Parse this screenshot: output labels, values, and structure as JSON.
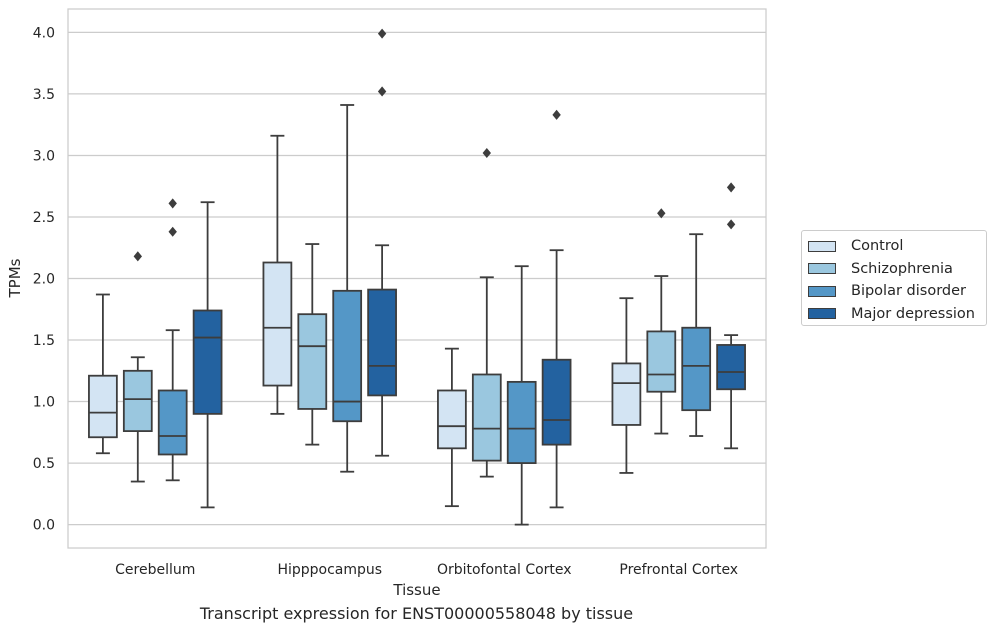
{
  "chart_data": {
    "type": "box",
    "xlabel": "Tissue",
    "ylabel": "TPMs",
    "caption": "Transcript expression for ENST00000558048 by tissue",
    "categories": [
      "Cerebellum",
      "Hipppocampus",
      "Orbitofontal Cortex",
      "Prefrontal Cortex"
    ],
    "ylim": [
      -0.19,
      4.19
    ],
    "yticks": [
      "0.0",
      "0.5",
      "1.0",
      "1.5",
      "2.0",
      "2.5",
      "3.0",
      "3.5",
      "4.0"
    ],
    "grid": true,
    "legend_position": "right",
    "series": [
      {
        "name": "Control",
        "color": "#d3e4f3",
        "boxes": [
          {
            "q1": 0.71,
            "median": 0.91,
            "q3": 1.21,
            "whisker_low": 0.58,
            "whisker_high": 1.87,
            "outliers": []
          },
          {
            "q1": 1.13,
            "median": 1.6,
            "q3": 2.13,
            "whisker_low": 0.9,
            "whisker_high": 3.16,
            "outliers": []
          },
          {
            "q1": 0.62,
            "median": 0.8,
            "q3": 1.09,
            "whisker_low": 0.15,
            "whisker_high": 1.43,
            "outliers": []
          },
          {
            "q1": 0.81,
            "median": 1.15,
            "q3": 1.31,
            "whisker_low": 0.42,
            "whisker_high": 1.84,
            "outliers": []
          }
        ]
      },
      {
        "name": "Schizophrenia",
        "color": "#9ac7df",
        "boxes": [
          {
            "q1": 0.76,
            "median": 1.02,
            "q3": 1.25,
            "whisker_low": 0.35,
            "whisker_high": 1.36,
            "outliers": [
              2.18
            ]
          },
          {
            "q1": 0.94,
            "median": 1.45,
            "q3": 1.71,
            "whisker_low": 0.65,
            "whisker_high": 2.28,
            "outliers": []
          },
          {
            "q1": 0.52,
            "median": 0.78,
            "q3": 1.22,
            "whisker_low": 0.39,
            "whisker_high": 2.01,
            "outliers": [
              3.02
            ]
          },
          {
            "q1": 1.08,
            "median": 1.22,
            "q3": 1.57,
            "whisker_low": 0.74,
            "whisker_high": 2.02,
            "outliers": [
              2.53
            ]
          }
        ]
      },
      {
        "name": "Bipolar disorder",
        "color": "#5497c7",
        "boxes": [
          {
            "q1": 0.57,
            "median": 0.72,
            "q3": 1.09,
            "whisker_low": 0.36,
            "whisker_high": 1.58,
            "outliers": [
              2.38,
              2.61
            ]
          },
          {
            "q1": 0.84,
            "median": 1.0,
            "q3": 1.9,
            "whisker_low": 0.43,
            "whisker_high": 3.41,
            "outliers": []
          },
          {
            "q1": 0.5,
            "median": 0.78,
            "q3": 1.16,
            "whisker_low": 0.0,
            "whisker_high": 2.1,
            "outliers": []
          },
          {
            "q1": 0.93,
            "median": 1.29,
            "q3": 1.6,
            "whisker_low": 0.72,
            "whisker_high": 2.36,
            "outliers": []
          }
        ]
      },
      {
        "name": "Major depression",
        "color": "#2362a0",
        "boxes": [
          {
            "q1": 0.9,
            "median": 1.52,
            "q3": 1.74,
            "whisker_low": 0.14,
            "whisker_high": 2.62,
            "outliers": []
          },
          {
            "q1": 1.05,
            "median": 1.29,
            "q3": 1.91,
            "whisker_low": 0.56,
            "whisker_high": 2.27,
            "outliers": [
              3.52,
              3.99
            ]
          },
          {
            "q1": 0.65,
            "median": 0.85,
            "q3": 1.34,
            "whisker_low": 0.14,
            "whisker_high": 2.23,
            "outliers": [
              3.33
            ]
          },
          {
            "q1": 1.1,
            "median": 1.24,
            "q3": 1.46,
            "whisker_low": 0.62,
            "whisker_high": 1.54,
            "outliers": [
              2.44,
              2.74
            ]
          }
        ]
      }
    ]
  }
}
